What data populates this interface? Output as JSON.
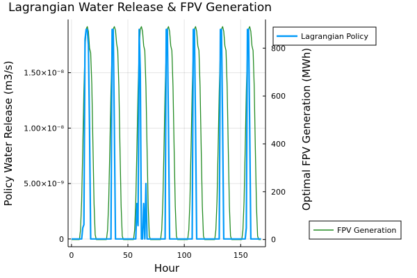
{
  "chart_data": {
    "type": "line",
    "title": "Lagrangian Water Release & FPV Generation",
    "xlabel": "Hour",
    "ylabel_left": "Policy Water Release (m3/s)",
    "ylabel_right": "Optimal FPV Generation (MWh)",
    "xlim": [
      -3,
      172
    ],
    "xticks": [
      0,
      50,
      100,
      150
    ],
    "ylim_left": [
      -7e-10,
      1.98e-08
    ],
    "yticks_left": [
      0,
      5e-09,
      1e-08,
      1.5e-08
    ],
    "yticks_left_labels": [
      "0",
      "5.00×10⁻⁹",
      "1.00×10⁻⁸",
      "1.50×10⁻⁸"
    ],
    "ylim_right": [
      -30,
      920
    ],
    "yticks_right": [
      0,
      200,
      400,
      600,
      800
    ],
    "grid": true,
    "series": [
      {
        "name": "Lagrangian Policy",
        "axis": "left",
        "color": "#009af9",
        "points": [
          [
            0,
            0
          ],
          [
            9,
            0
          ],
          [
            10,
            1e-09
          ],
          [
            11,
            1.3e-09
          ],
          [
            12,
            1.8e-08
          ],
          [
            13,
            1.89e-08
          ],
          [
            14,
            1.89e-08
          ],
          [
            15,
            1.75e-08
          ],
          [
            16,
            1e-08
          ],
          [
            17,
            0
          ],
          [
            34,
            0
          ],
          [
            35,
            0
          ],
          [
            36,
            1.89e-08
          ],
          [
            37,
            1.89e-08
          ],
          [
            38,
            1e-08
          ],
          [
            39,
            0
          ],
          [
            57,
            0
          ],
          [
            58,
            3.2e-09
          ],
          [
            59,
            1.2e-09
          ],
          [
            60,
            1.89e-08
          ],
          [
            61,
            1.5e-08
          ],
          [
            62,
            0
          ],
          [
            63,
            0
          ],
          [
            64,
            3.2e-09
          ],
          [
            65,
            0
          ],
          [
            66,
            5e-09
          ],
          [
            67,
            0
          ],
          [
            82,
            0
          ],
          [
            83,
            0
          ],
          [
            84,
            1.89e-08
          ],
          [
            85,
            1.89e-08
          ],
          [
            86,
            1e-08
          ],
          [
            87,
            0
          ],
          [
            106,
            0
          ],
          [
            107,
            0
          ],
          [
            108,
            1.89e-08
          ],
          [
            109,
            1.89e-08
          ],
          [
            110,
            1e-08
          ],
          [
            111,
            0
          ],
          [
            130,
            0
          ],
          [
            131,
            0
          ],
          [
            132,
            1.89e-08
          ],
          [
            133,
            1.89e-08
          ],
          [
            134,
            1e-08
          ],
          [
            135,
            0
          ],
          [
            154,
            0
          ],
          [
            155,
            1e-09
          ],
          [
            156,
            1.89e-08
          ],
          [
            157,
            1.89e-08
          ],
          [
            158,
            1e-08
          ],
          [
            159,
            0
          ],
          [
            168,
            0
          ]
        ]
      },
      {
        "name": "FPV Generation",
        "axis": "right",
        "color": "#228b22",
        "points": [
          [
            0,
            0
          ],
          [
            7,
            0
          ],
          [
            8,
            40
          ],
          [
            9,
            160
          ],
          [
            10,
            380
          ],
          [
            11,
            620
          ],
          [
            12,
            800
          ],
          [
            13,
            880
          ],
          [
            14,
            890
          ],
          [
            15,
            870
          ],
          [
            16,
            800
          ],
          [
            17,
            780
          ],
          [
            18,
            650
          ],
          [
            19,
            400
          ],
          [
            20,
            150
          ],
          [
            21,
            20
          ],
          [
            22,
            0
          ],
          [
            31,
            0
          ],
          [
            32,
            40
          ],
          [
            33,
            160
          ],
          [
            34,
            380
          ],
          [
            35,
            620
          ],
          [
            36,
            800
          ],
          [
            37,
            880
          ],
          [
            38,
            890
          ],
          [
            39,
            875
          ],
          [
            40,
            820
          ],
          [
            41,
            790
          ],
          [
            42,
            640
          ],
          [
            43,
            380
          ],
          [
            44,
            140
          ],
          [
            45,
            15
          ],
          [
            46,
            0
          ],
          [
            55,
            0
          ],
          [
            56,
            40
          ],
          [
            57,
            160
          ],
          [
            58,
            380
          ],
          [
            59,
            620
          ],
          [
            60,
            800
          ],
          [
            61,
            880
          ],
          [
            62,
            890
          ],
          [
            63,
            870
          ],
          [
            64,
            810
          ],
          [
            65,
            790
          ],
          [
            66,
            640
          ],
          [
            67,
            380
          ],
          [
            68,
            140
          ],
          [
            69,
            15
          ],
          [
            70,
            0
          ],
          [
            79,
            0
          ],
          [
            80,
            40
          ],
          [
            81,
            160
          ],
          [
            82,
            380
          ],
          [
            83,
            620
          ],
          [
            84,
            800
          ],
          [
            85,
            880
          ],
          [
            86,
            890
          ],
          [
            87,
            870
          ],
          [
            88,
            810
          ],
          [
            89,
            790
          ],
          [
            90,
            640
          ],
          [
            91,
            380
          ],
          [
            92,
            140
          ],
          [
            93,
            15
          ],
          [
            94,
            0
          ],
          [
            103,
            0
          ],
          [
            104,
            40
          ],
          [
            105,
            160
          ],
          [
            106,
            380
          ],
          [
            107,
            620
          ],
          [
            108,
            800
          ],
          [
            109,
            880
          ],
          [
            110,
            890
          ],
          [
            111,
            870
          ],
          [
            112,
            810
          ],
          [
            113,
            790
          ],
          [
            114,
            640
          ],
          [
            115,
            380
          ],
          [
            116,
            140
          ],
          [
            117,
            15
          ],
          [
            118,
            0
          ],
          [
            127,
            0
          ],
          [
            128,
            40
          ],
          [
            129,
            160
          ],
          [
            130,
            380
          ],
          [
            131,
            620
          ],
          [
            132,
            800
          ],
          [
            133,
            880
          ],
          [
            134,
            890
          ],
          [
            135,
            870
          ],
          [
            136,
            810
          ],
          [
            137,
            790
          ],
          [
            138,
            640
          ],
          [
            139,
            380
          ],
          [
            140,
            140
          ],
          [
            141,
            15
          ],
          [
            142,
            0
          ],
          [
            151,
            0
          ],
          [
            152,
            40
          ],
          [
            153,
            160
          ],
          [
            154,
            380
          ],
          [
            155,
            620
          ],
          [
            156,
            800
          ],
          [
            157,
            880
          ],
          [
            158,
            890
          ],
          [
            159,
            870
          ],
          [
            160,
            810
          ],
          [
            161,
            790
          ],
          [
            162,
            640
          ],
          [
            163,
            380
          ],
          [
            164,
            140
          ],
          [
            165,
            15
          ],
          [
            166,
            0
          ],
          [
            168,
            0
          ]
        ]
      }
    ],
    "legends": [
      {
        "series": "Lagrangian Policy",
        "placement": "top-right"
      },
      {
        "series": "FPV Generation",
        "placement": "bottom-right"
      }
    ]
  }
}
